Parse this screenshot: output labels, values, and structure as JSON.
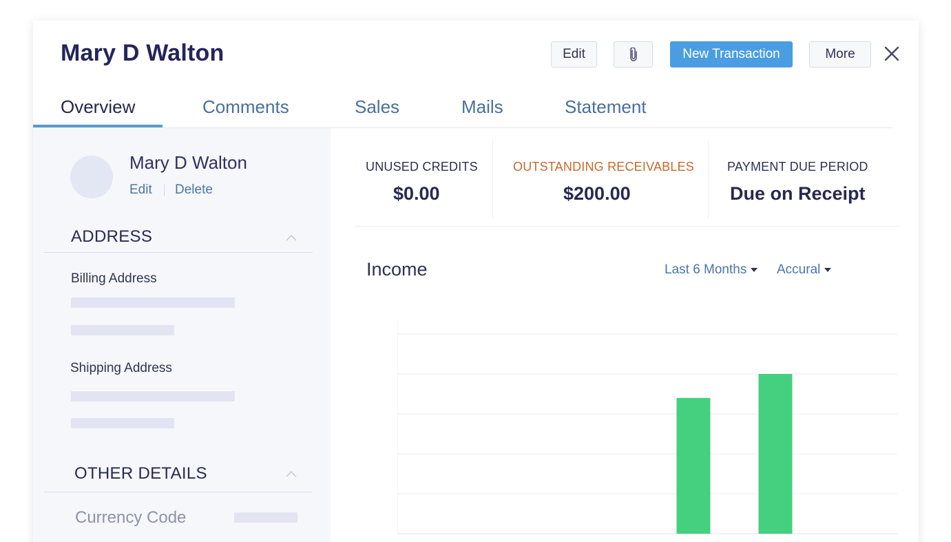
{
  "customer": {
    "name": "Mary D Walton"
  },
  "toolbar": {
    "edit_label": "Edit",
    "attach_icon": "paperclip-icon",
    "new_transaction_label": "New Transaction",
    "more_label": "More",
    "close_icon": "close-icon"
  },
  "tabs": [
    {
      "label": "Overview",
      "active": true
    },
    {
      "label": "Comments",
      "active": false
    },
    {
      "label": "Sales",
      "active": false
    },
    {
      "label": "Mails",
      "active": false
    },
    {
      "label": "Statement",
      "active": false
    }
  ],
  "profile": {
    "name": "Mary D Walton",
    "edit_label": "Edit",
    "delete_label": "Delete"
  },
  "address": {
    "heading": "ADDRESS",
    "billing_label": "Billing Address",
    "shipping_label": "Shipping Address"
  },
  "other_details": {
    "heading": "OTHER DETAILS",
    "currency_label": "Currency Code"
  },
  "stats": [
    {
      "label": "UNUSED CREDITS",
      "value": "$0.00",
      "label_color": "#2c3050"
    },
    {
      "label": "OUTSTANDING RECEIVABLES",
      "value": "$200.00",
      "label_color": "#c8682a"
    },
    {
      "label": "PAYMENT DUE PERIOD",
      "value": "Due on Receipt",
      "label_color": "#2c3050"
    }
  ],
  "income": {
    "title": "Income",
    "period_label": "Last 6 Months",
    "basis_label": "Accural"
  },
  "colors": {
    "accent": "#4a9de0",
    "bar": "#45d07f",
    "warning": "#c8682a"
  },
  "chart_data": {
    "type": "bar",
    "categories": [
      "",
      "",
      "",
      "",
      ""
    ],
    "values": [
      0,
      0,
      0,
      170,
      200
    ],
    "ylim": [
      0,
      250
    ],
    "grid": true,
    "legend": "none"
  }
}
